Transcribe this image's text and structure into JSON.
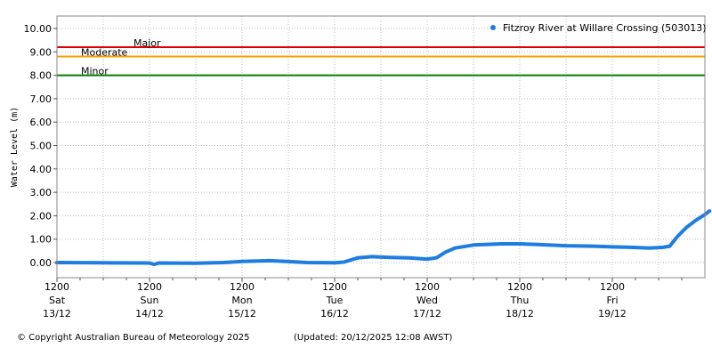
{
  "chart_data": {
    "type": "line",
    "title": "",
    "ylabel": "Water Level (m)",
    "xlabel": "",
    "ylim": [
      -0.6,
      10.5
    ],
    "xlim": [
      0,
      7.07
    ],
    "grid": true,
    "legend_placement": "top-right",
    "y_ticks": [
      "0.00",
      "1.00",
      "2.00",
      "3.00",
      "4.00",
      "5.00",
      "6.00",
      "7.00",
      "8.00",
      "9.00",
      "10.00"
    ],
    "x_ticks": [
      {
        "time": "1200",
        "day": "Sat",
        "date": "13/12"
      },
      {
        "time": "1200",
        "day": "Sun",
        "date": "14/12"
      },
      {
        "time": "1200",
        "day": "Mon",
        "date": "15/12"
      },
      {
        "time": "1200",
        "day": "Tue",
        "date": "16/12"
      },
      {
        "time": "1200",
        "day": "Wed",
        "date": "17/12"
      },
      {
        "time": "1200",
        "day": "Thu",
        "date": "18/12"
      },
      {
        "time": "1200",
        "day": "Fri",
        "date": "19/12"
      }
    ],
    "thresholds": [
      {
        "name": "Major",
        "value": 9.2,
        "color": "#e00000"
      },
      {
        "name": "Moderate",
        "value": 8.8,
        "color": "#f5a000"
      },
      {
        "name": "Minor",
        "value": 8.0,
        "color": "#008000"
      }
    ],
    "series": [
      {
        "name": "Fitzroy River at Willare Crossing (503013)",
        "color": "#1e7de0",
        "x": [
          0,
          0.5,
          1.0,
          1.05,
          1.1,
          1.5,
          1.8,
          2.0,
          2.3,
          2.5,
          2.7,
          3.0,
          3.1,
          3.25,
          3.4,
          3.6,
          3.8,
          4.0,
          4.1,
          4.2,
          4.3,
          4.5,
          4.8,
          5.0,
          5.2,
          5.5,
          5.8,
          6.0,
          6.2,
          6.4,
          6.55,
          6.62,
          6.7,
          6.8,
          6.9,
          7.0,
          7.05
        ],
        "y": [
          0.0,
          -0.01,
          -0.02,
          -0.08,
          -0.02,
          -0.03,
          0.0,
          0.05,
          0.08,
          0.04,
          0.0,
          -0.01,
          0.02,
          0.2,
          0.25,
          0.22,
          0.2,
          0.15,
          0.2,
          0.45,
          0.62,
          0.75,
          0.8,
          0.8,
          0.77,
          0.72,
          0.7,
          0.67,
          0.65,
          0.62,
          0.65,
          0.7,
          1.1,
          1.5,
          1.8,
          2.05,
          2.2
        ]
      }
    ]
  },
  "footer": {
    "copyright": "© Copyright Australian Bureau of Meteorology 2025",
    "updated": "(Updated: 20/12/2025 12:08 AWST)"
  }
}
